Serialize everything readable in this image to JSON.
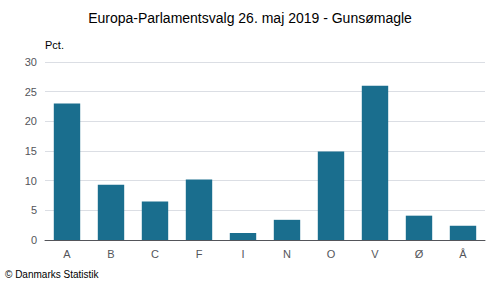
{
  "chart_data": {
    "type": "bar",
    "title": "Europa-Parlamentsvalg 26. maj 2019 - Gunsømagle",
    "ylabel": "Pct.",
    "footer": "© Danmarks Statistik",
    "categories": [
      "A",
      "B",
      "C",
      "F",
      "I",
      "N",
      "O",
      "V",
      "Ø",
      "Å"
    ],
    "values": [
      23.0,
      9.3,
      6.5,
      10.2,
      1.2,
      3.4,
      14.9,
      26.0,
      4.1,
      2.4
    ],
    "color": "#1a6e8e",
    "ylim": [
      0,
      30
    ],
    "yticks": [
      0,
      5,
      10,
      15,
      20,
      25,
      30
    ],
    "grid": true
  }
}
